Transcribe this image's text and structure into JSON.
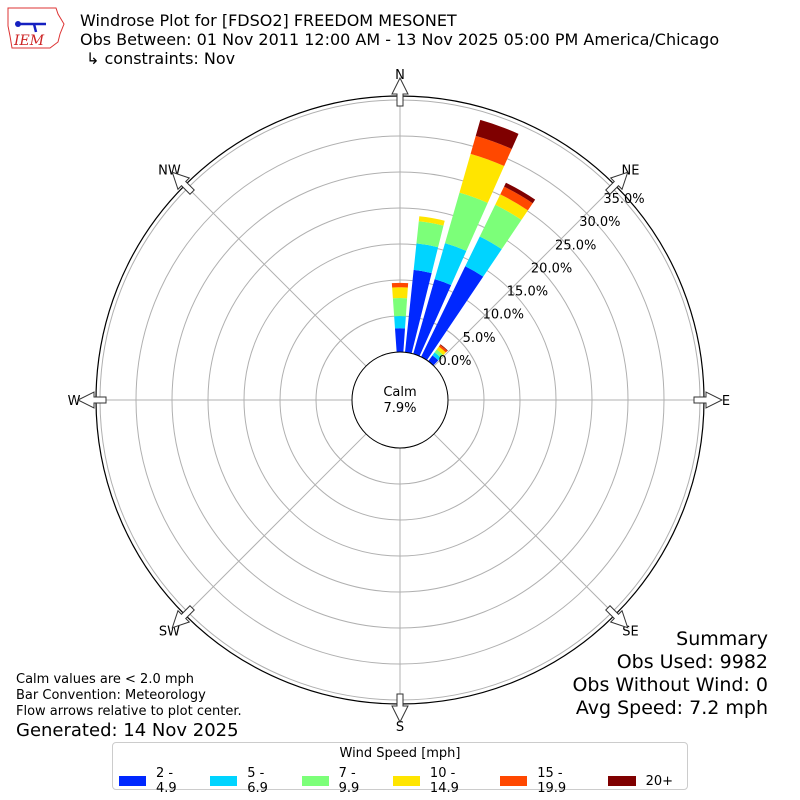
{
  "header": {
    "title_line1": "Windrose Plot for [FDSO2] FREEDOM MESONET",
    "title_line2": "Obs Between: 01 Nov 2011 12:00 AM - 13 Nov 2025 05:00 PM America/Chicago",
    "title_line3": "↳ constraints: Nov",
    "logo_text": "IEM"
  },
  "notes": {
    "line1": "Calm values are < 2.0 mph",
    "line2": "Bar Convention: Meteorology",
    "line3": "Flow arrows relative to plot center.",
    "generated": "Generated: 14 Nov 2025"
  },
  "summary": {
    "title": "Summary",
    "obs_used": "Obs Used: 9982",
    "obs_without_wind": "Obs Without Wind: 0",
    "avg_speed": "Avg Speed: 7.2 mph"
  },
  "chart_data": {
    "type": "windrose",
    "calm_label": "Calm",
    "calm_value": "7.9%",
    "directions": [
      "N",
      "NE",
      "E",
      "SE",
      "S",
      "SW",
      "W",
      "NW"
    ],
    "radial_ticks": [
      "0.0%",
      "5.0%",
      "10.0%",
      "15.0%",
      "20.0%",
      "25.0%",
      "30.0%",
      "35.0%"
    ],
    "rlim": [
      0,
      35
    ],
    "bin_width_deg": 10,
    "legend_title": "Wind Speed [mph]",
    "speed_bins": [
      {
        "label": "2 - 4.9",
        "color": "#0028ff"
      },
      {
        "label": "5 - 6.9",
        "color": "#00d4ff"
      },
      {
        "label": "7 - 9.9",
        "color": "#7cff79"
      },
      {
        "label": "10 - 14.9",
        "color": "#ffe500"
      },
      {
        "label": "15 - 19.9",
        "color": "#ff4800"
      },
      {
        "label": "20+",
        "color": "#7f0000"
      }
    ],
    "bars": [
      {
        "direction_deg": 0,
        "values": [
          3.3,
          1.7,
          2.5,
          1.5,
          0.6,
          0
        ]
      },
      {
        "direction_deg": 10,
        "values": [
          11.5,
          3.7,
          3.1,
          0.7,
          0,
          0
        ]
      },
      {
        "direction_deg": 20,
        "values": [
          10.8,
          5.2,
          7.3,
          5.6,
          2.6,
          2.3
        ]
      },
      {
        "direction_deg": 30,
        "values": [
          14.0,
          4.6,
          4.9,
          1.6,
          1.2,
          0.6
        ]
      },
      {
        "direction_deg": 40,
        "values": [
          1.0,
          0.5,
          0.5,
          0.5,
          0.3,
          0.1
        ]
      }
    ]
  }
}
